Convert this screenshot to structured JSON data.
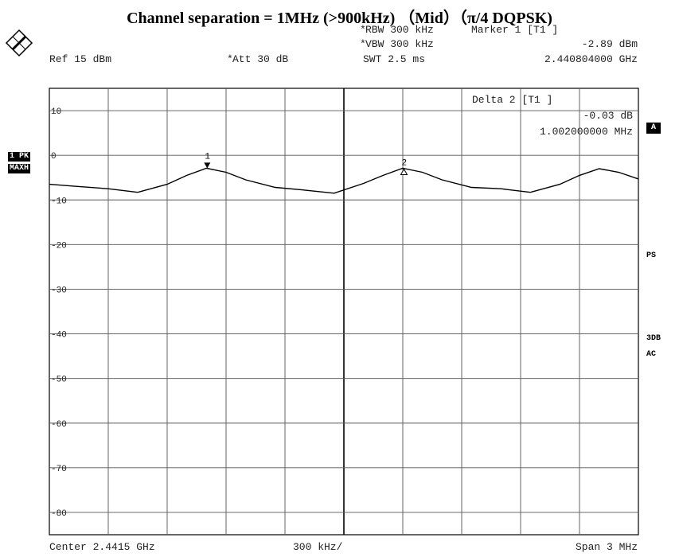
{
  "title": "Channel separation = 1MHz (>900kHz) （Mid）（π/4 DQPSK)",
  "header": {
    "rbw": "RBW 300 kHz",
    "vbw": "VBW 300 kHz",
    "swt": "SWT 2.5 ms",
    "ref": "Ref  15 dBm",
    "att": "Att  30 dB",
    "marker_title": "Marker 1 [T1 ]",
    "marker_level": "-2.89 dBm",
    "marker_freq": "2.440804000 GHz"
  },
  "delta_box": {
    "title": "Delta 2 [T1 ]",
    "level": "-0.03 dB",
    "freq": "1.002000000 MHz"
  },
  "side_labels": {
    "trace_mode": "1 PK",
    "trace_detector": "MAXH",
    "a_badge": "A",
    "ps": "PS",
    "3db": "3DB",
    "ac": "AC"
  },
  "footer": {
    "center": "Center 2.4415 GHz",
    "div": "300 kHz/",
    "span": "Span 3 MHz"
  },
  "chart_data": {
    "type": "line",
    "x_unit": "GHz",
    "y_unit": "dBm",
    "xlim": [
      2.44,
      2.443
    ],
    "ylim": [
      -85,
      15
    ],
    "grid": true,
    "y_ticks": [
      "10",
      "0",
      "-10",
      "-20",
      "-30",
      "-40",
      "-50",
      "-60",
      "-70",
      "-80"
    ],
    "series": [
      {
        "x": [
          2.44,
          2.44015,
          2.4403,
          2.44045,
          2.4406,
          2.4407,
          2.4408,
          2.4409,
          2.441,
          2.44115,
          2.4413,
          2.44145,
          2.4416,
          2.4417,
          2.4418,
          2.4419,
          2.442,
          2.44215,
          2.4423,
          2.44245,
          2.4426,
          2.4427,
          2.4428,
          2.4429,
          2.443
        ],
        "y": [
          -6.5,
          -7.0,
          -7.5,
          -8.3,
          -6.5,
          -4.5,
          -2.9,
          -3.8,
          -5.5,
          -7.2,
          -7.8,
          -8.5,
          -6.3,
          -4.5,
          -2.9,
          -3.8,
          -5.5,
          -7.2,
          -7.5,
          -8.3,
          -6.5,
          -4.5,
          -3.0,
          -3.8,
          -5.3
        ]
      }
    ],
    "markers": [
      {
        "label": "1",
        "x": 2.440804,
        "y": -2.89
      },
      {
        "label": "2",
        "x": 2.441806,
        "y": -2.92
      }
    ]
  }
}
